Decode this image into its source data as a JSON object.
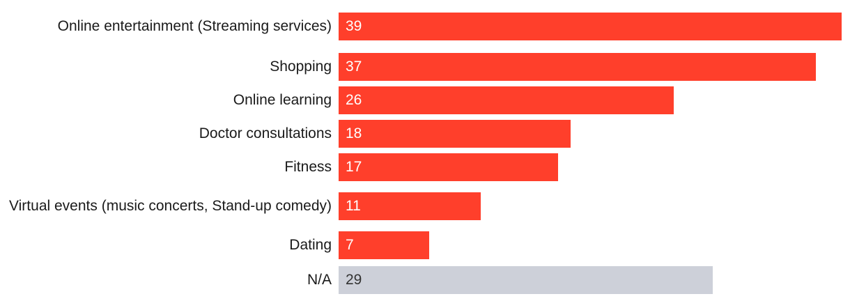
{
  "chart_data": {
    "type": "bar",
    "orientation": "horizontal",
    "categories": [
      "Online entertainment (Streaming services)",
      "Shopping",
      "Online learning",
      "Doctor consultations",
      "Fitness",
      "Virtual events (music concerts, Stand-up comedy)",
      "Dating",
      "N/A"
    ],
    "values": [
      39,
      37,
      26,
      18,
      17,
      11,
      7,
      29
    ],
    "xlim": [
      0,
      39
    ],
    "grid": false,
    "colors": {
      "primary": "#ff3f2b",
      "na": "#cdd0d9",
      "value_text_primary": "#ffffff",
      "value_text_na": "#333333",
      "label_text": "#1a1a1a"
    }
  }
}
